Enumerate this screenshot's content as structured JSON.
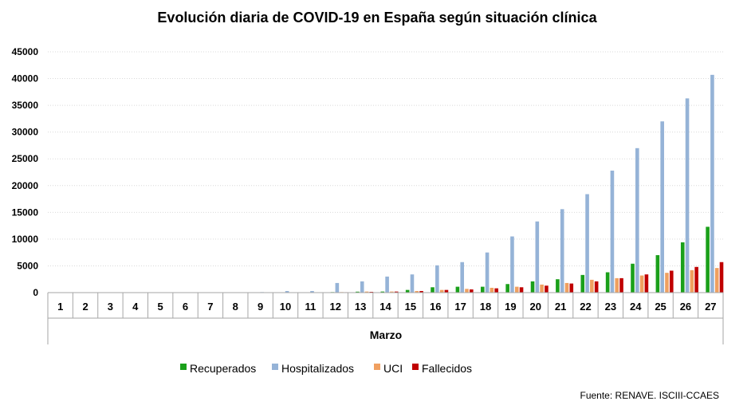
{
  "chart_data": {
    "type": "bar",
    "title": "Evolución diaria de COVID-19 en España según situación clínica",
    "xlabel": "Marzo",
    "ylabel": "",
    "ylim": [
      0,
      45000
    ],
    "yticks": [
      0,
      5000,
      10000,
      15000,
      20000,
      25000,
      30000,
      35000,
      40000,
      45000
    ],
    "grid": true,
    "legend_position": "bottom",
    "categories": [
      "1",
      "2",
      "3",
      "4",
      "5",
      "6",
      "7",
      "8",
      "9",
      "10",
      "11",
      "12",
      "13",
      "14",
      "15",
      "16",
      "17",
      "18",
      "19",
      "20",
      "21",
      "22",
      "23",
      "24",
      "25",
      "26",
      "27"
    ],
    "series": [
      {
        "name": "Recuperados",
        "color": "#1aa01a",
        "values": [
          0,
          0,
          0,
          0,
          0,
          0,
          0,
          0,
          0,
          30,
          30,
          100,
          180,
          200,
          500,
          1000,
          1100,
          1100,
          1600,
          2100,
          2500,
          3300,
          3800,
          5400,
          7000,
          9400,
          12300
        ]
      },
      {
        "name": "Hospitalizados",
        "color": "#95b3d7",
        "values": [
          0,
          0,
          0,
          0,
          0,
          0,
          0,
          0,
          100,
          300,
          300,
          1800,
          2100,
          3000,
          3400,
          5100,
          5700,
          7500,
          10500,
          13300,
          15600,
          18400,
          22800,
          27000,
          32000,
          36300,
          40700
        ]
      },
      {
        "name": "UCI",
        "color": "#f0a060",
        "values": [
          0,
          0,
          0,
          0,
          0,
          0,
          0,
          0,
          0,
          30,
          40,
          100,
          200,
          200,
          300,
          500,
          700,
          900,
          1100,
          1500,
          1800,
          2400,
          2700,
          3200,
          3700,
          4200,
          4600
        ]
      },
      {
        "name": "Fallecidos",
        "color": "#c00000",
        "values": [
          0,
          0,
          0,
          0,
          0,
          0,
          0,
          0,
          0,
          20,
          30,
          80,
          150,
          200,
          300,
          500,
          600,
          800,
          1000,
          1300,
          1700,
          2100,
          2700,
          3400,
          4100,
          4800,
          5700
        ]
      }
    ],
    "source": "Fuente: RENAVE. ISCIII-CCAES"
  }
}
